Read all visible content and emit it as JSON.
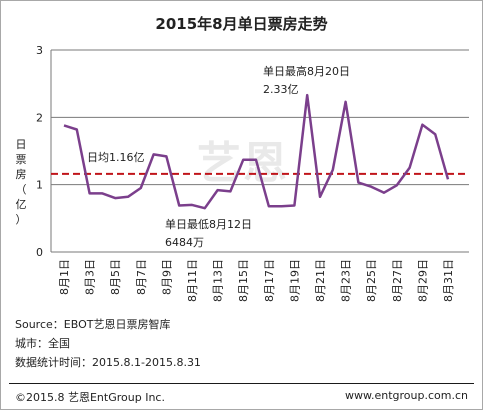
{
  "chart_data": {
    "type": "line",
    "title": "2015年8月单日票房走势",
    "ylabel": [
      "日",
      "票",
      "房",
      "（",
      "亿",
      "）"
    ],
    "ylim": [
      0,
      3
    ],
    "yticks": [
      "0",
      "1",
      "2",
      "3"
    ],
    "x": [
      "8月1日",
      "8月2日",
      "8月3日",
      "8月4日",
      "8月5日",
      "8月6日",
      "8月7日",
      "8月8日",
      "8月9日",
      "8月10日",
      "8月11日",
      "8月12日",
      "8月13日",
      "8月14日",
      "8月15日",
      "8月16日",
      "8月17日",
      "8月18日",
      "8月19日",
      "8月20日",
      "8月21日",
      "8月22日",
      "8月23日",
      "8月24日",
      "8月25日",
      "8月26日",
      "8月27日",
      "8月28日",
      "8月29日",
      "8月30日",
      "8月31日"
    ],
    "xticks": [
      "8月1日",
      "8月3日",
      "8月5日",
      "8月7日",
      "8月9日",
      "8月11日",
      "8月13日",
      "8月15日",
      "8月17日",
      "8月19日",
      "8月21日",
      "8月23日",
      "8月25日",
      "8月27日",
      "8月29日",
      "8月31日"
    ],
    "values": [
      1.88,
      1.82,
      0.87,
      0.87,
      0.8,
      0.82,
      0.95,
      1.45,
      1.42,
      0.69,
      0.7,
      0.65,
      0.92,
      0.9,
      1.37,
      1.37,
      0.68,
      0.68,
      0.69,
      2.33,
      0.82,
      1.22,
      2.23,
      1.03,
      0.97,
      0.88,
      0.99,
      1.25,
      1.89,
      1.75,
      1.08
    ],
    "average": 1.16,
    "average_label": "日均1.16亿",
    "max_label_line1": "单日最高8月20日",
    "max_label_line2": "2.33亿",
    "min_label_line1": "单日最低8月12日",
    "min_label_line2": "6484万",
    "series_color": "#7b3f8c",
    "average_color": "#c0141a",
    "grid": true,
    "grid_color": "#7a7a7a"
  },
  "notes": {
    "source": "Source：EBOT艺恩日票房智库",
    "city": "城市：全国",
    "period": "数据统计时间：2015.8.1-2015.8.31"
  },
  "footer": {
    "copyright": "©2015.8 艺恩EntGroup Inc.",
    "url": "www.entgroup.com.cn"
  },
  "watermark": "艺恩"
}
